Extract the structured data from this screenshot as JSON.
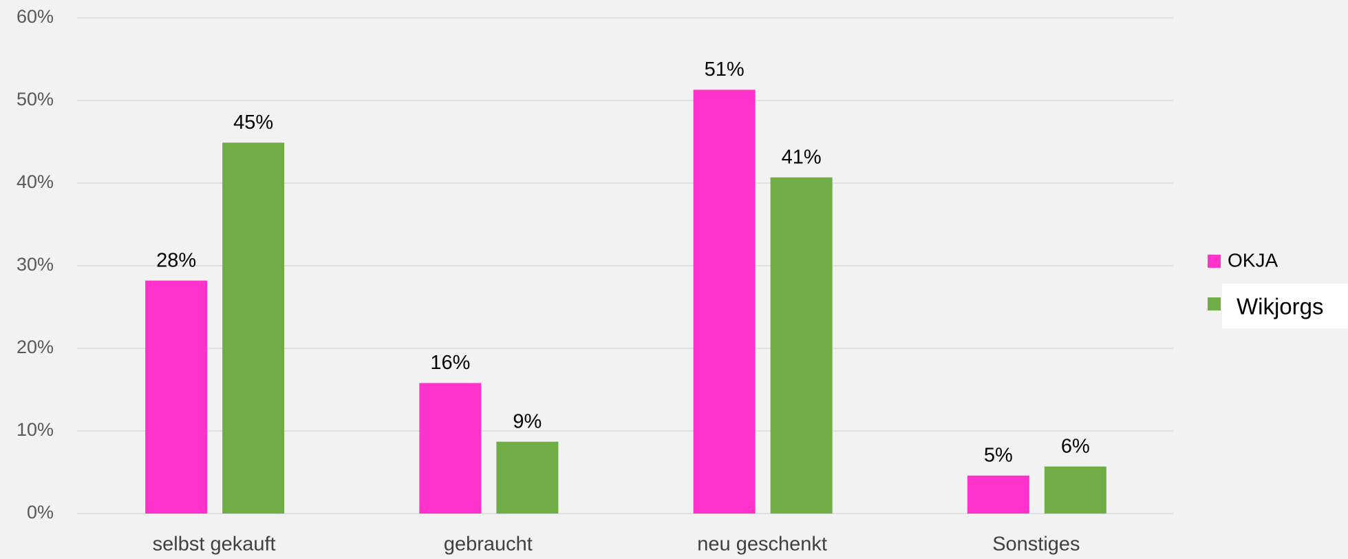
{
  "chart_data": {
    "type": "bar",
    "categories": [
      "selbst gekauft",
      "gebraucht",
      "neu geschenkt",
      "Sonstiges"
    ],
    "series": [
      {
        "name": "OKJA",
        "color": "#ff33cc",
        "values": [
          28.2,
          15.8,
          51.3,
          4.6
        ],
        "value_labels": [
          "28%",
          "16%",
          "51%",
          "5%"
        ]
      },
      {
        "name": "Wikjorgs",
        "color": "#70ad47",
        "values": [
          44.9,
          8.7,
          40.7,
          5.7
        ],
        "value_labels": [
          "45%",
          "9%",
          "41%",
          "6%"
        ]
      }
    ],
    "ylim": [
      0,
      60
    ],
    "yticks": [
      {
        "value": 0,
        "label": "0%"
      },
      {
        "value": 10,
        "label": "10%"
      },
      {
        "value": 20,
        "label": "20%"
      },
      {
        "value": 30,
        "label": "30%"
      },
      {
        "value": 40,
        "label": "40%"
      },
      {
        "value": 50,
        "label": "50%"
      },
      {
        "value": 60,
        "label": "60%"
      }
    ],
    "grid": true,
    "legend": "right"
  }
}
